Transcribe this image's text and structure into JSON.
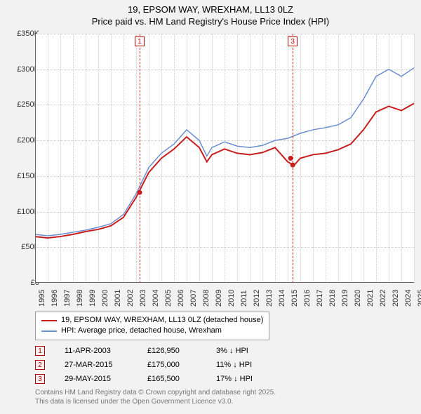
{
  "title": {
    "line1": "19, EPSOM WAY, WREXHAM, LL13 0LZ",
    "line2": "Price paid vs. HM Land Registry's House Price Index (HPI)"
  },
  "chart": {
    "type": "line",
    "background_color": "#ffffff",
    "page_background": "#f2f2f2",
    "grid_color": "#cccccc",
    "axis_color": "#666666",
    "ylim": [
      0,
      350000
    ],
    "ytick_step": 50000,
    "ytick_labels": [
      "£0",
      "£50K",
      "£100K",
      "£150K",
      "£200K",
      "£250K",
      "£300K",
      "£350K"
    ],
    "xlim": [
      1995,
      2025
    ],
    "xtick_step": 1,
    "xtick_labels": [
      "1995",
      "1996",
      "1997",
      "1998",
      "1999",
      "2000",
      "2001",
      "2002",
      "2003",
      "2004",
      "2005",
      "2006",
      "2007",
      "2008",
      "2009",
      "2010",
      "2011",
      "2012",
      "2013",
      "2014",
      "2015",
      "2016",
      "2017",
      "2018",
      "2019",
      "2020",
      "2021",
      "2022",
      "2023",
      "2024",
      "2025"
    ],
    "series": [
      {
        "name": "property",
        "label": "19, EPSOM WAY, WREXHAM, LL13 0LZ (detached house)",
        "color": "#c81e1e",
        "line_width": 2,
        "points": [
          [
            1995,
            65000
          ],
          [
            1996,
            63000
          ],
          [
            1997,
            65000
          ],
          [
            1998,
            68000
          ],
          [
            1999,
            72000
          ],
          [
            2000,
            75000
          ],
          [
            2001,
            80000
          ],
          [
            2002,
            92000
          ],
          [
            2003,
            120000
          ],
          [
            2004,
            155000
          ],
          [
            2005,
            175000
          ],
          [
            2006,
            188000
          ],
          [
            2007,
            205000
          ],
          [
            2008,
            190000
          ],
          [
            2008.6,
            170000
          ],
          [
            2009,
            180000
          ],
          [
            2010,
            188000
          ],
          [
            2011,
            182000
          ],
          [
            2012,
            180000
          ],
          [
            2013,
            183000
          ],
          [
            2014,
            190000
          ],
          [
            2015,
            170000
          ],
          [
            2015.5,
            165000
          ],
          [
            2016,
            175000
          ],
          [
            2017,
            180000
          ],
          [
            2018,
            182000
          ],
          [
            2019,
            187000
          ],
          [
            2020,
            195000
          ],
          [
            2021,
            215000
          ],
          [
            2022,
            240000
          ],
          [
            2023,
            248000
          ],
          [
            2024,
            242000
          ],
          [
            2025,
            252000
          ]
        ]
      },
      {
        "name": "hpi",
        "label": "HPI: Average price, detached house, Wrexham",
        "color": "#6b8ecf",
        "line_width": 1.5,
        "points": [
          [
            1995,
            68000
          ],
          [
            1996,
            66000
          ],
          [
            1997,
            68000
          ],
          [
            1998,
            71000
          ],
          [
            1999,
            74000
          ],
          [
            2000,
            78000
          ],
          [
            2001,
            83000
          ],
          [
            2002,
            96000
          ],
          [
            2003,
            125000
          ],
          [
            2004,
            162000
          ],
          [
            2005,
            182000
          ],
          [
            2006,
            195000
          ],
          [
            2007,
            215000
          ],
          [
            2008,
            200000
          ],
          [
            2008.6,
            178000
          ],
          [
            2009,
            190000
          ],
          [
            2010,
            198000
          ],
          [
            2011,
            192000
          ],
          [
            2012,
            190000
          ],
          [
            2013,
            193000
          ],
          [
            2014,
            200000
          ],
          [
            2015,
            203000
          ],
          [
            2016,
            210000
          ],
          [
            2017,
            215000
          ],
          [
            2018,
            218000
          ],
          [
            2019,
            222000
          ],
          [
            2020,
            232000
          ],
          [
            2021,
            258000
          ],
          [
            2022,
            290000
          ],
          [
            2023,
            300000
          ],
          [
            2024,
            290000
          ],
          [
            2025,
            302000
          ]
        ]
      }
    ],
    "sale_markers": [
      {
        "x": 2003.28,
        "color": "#c81e1e",
        "point_y": 126950
      },
      {
        "x": 2015.4,
        "color": "#c81e1e",
        "point_y": 165500
      }
    ],
    "sale_marker_box": {
      "labels_top": [
        "1",
        "3"
      ],
      "border_color": "#b00000",
      "text_color": "#b00000"
    },
    "sale_points_extra": [
      {
        "x": 2003.28,
        "y": 126950
      },
      {
        "x": 2015.23,
        "y": 175000
      },
      {
        "x": 2015.4,
        "y": 165500
      }
    ],
    "label_fontsize": 11,
    "title_fontsize": 13
  },
  "legend": {
    "items": [
      {
        "label": "19, EPSOM WAY, WREXHAM, LL13 0LZ (detached house)",
        "color": "#c81e1e"
      },
      {
        "label": "HPI: Average price, detached house, Wrexham",
        "color": "#6b8ecf"
      }
    ]
  },
  "transactions": [
    {
      "num": "1",
      "date": "11-APR-2003",
      "price": "£126,950",
      "diff": "3% ↓ HPI"
    },
    {
      "num": "2",
      "date": "27-MAR-2015",
      "price": "£175,000",
      "diff": "11% ↓ HPI"
    },
    {
      "num": "3",
      "date": "29-MAY-2015",
      "price": "£165,500",
      "diff": "17% ↓ HPI"
    }
  ],
  "footer": {
    "line1": "Contains HM Land Registry data © Crown copyright and database right 2025.",
    "line2": "This data is licensed under the Open Government Licence v3.0."
  }
}
